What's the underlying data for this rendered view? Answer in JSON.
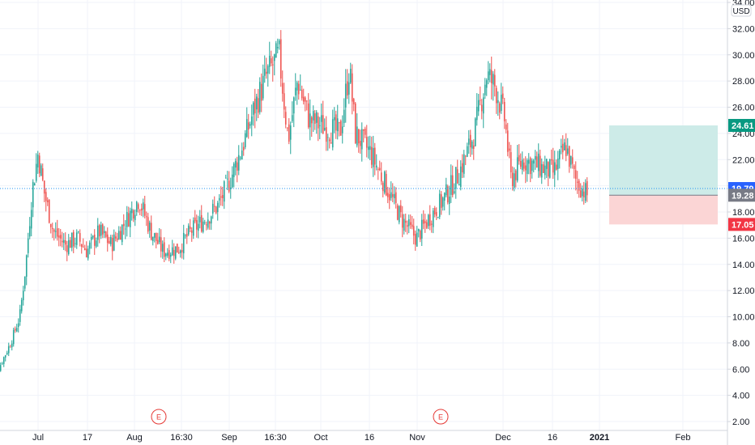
{
  "chart_data": {
    "type": "candlestick",
    "currency": "USD",
    "y_range": [
      1.5,
      34.5
    ],
    "y_ticks": [
      "2.00",
      "4.00",
      "6.00",
      "8.00",
      "10.00",
      "12.00",
      "14.00",
      "16.00",
      "18.00",
      "20.00",
      "22.00",
      "24.00",
      "26.00",
      "28.00",
      "30.00",
      "32.00",
      "34.00"
    ],
    "x_ticks": [
      "Jul",
      "17",
      "Aug",
      "16:30",
      "Sep",
      "16:30",
      "Oct",
      "16",
      "Nov",
      "Dec",
      "16",
      "2021",
      "Feb"
    ],
    "grid": true,
    "colors": {
      "up": "#26a69a",
      "down": "#ef5350",
      "grid": "#f0f3fa",
      "last_price_line": "#2196f3"
    },
    "series_close_path": [
      {
        "x": "Jun 15",
        "y": 4.5
      },
      {
        "x": "Jun 18",
        "y": 6.0
      },
      {
        "x": "Jun 22",
        "y": 8.0
      },
      {
        "x": "Jun 25",
        "y": 10.0
      },
      {
        "x": "Jun 27",
        "y": 14.0
      },
      {
        "x": "Jun 29",
        "y": 19.5
      },
      {
        "x": "Jul 1",
        "y": 22.5
      },
      {
        "x": "Jul 3",
        "y": 19.5
      },
      {
        "x": "Jul 6",
        "y": 16.5
      },
      {
        "x": "Jul 10",
        "y": 15.5
      },
      {
        "x": "Jul 14",
        "y": 16.0
      },
      {
        "x": "Jul 17",
        "y": 15.0
      },
      {
        "x": "Jul 21",
        "y": 16.5
      },
      {
        "x": "Jul 25",
        "y": 15.5
      },
      {
        "x": "Jul 29",
        "y": 17.0
      },
      {
        "x": "Aug 3",
        "y": 19.0
      },
      {
        "x": "Aug 7",
        "y": 16.5
      },
      {
        "x": "Aug 11",
        "y": 15.0
      },
      {
        "x": "Aug 16",
        "y": 15.2
      },
      {
        "x": "Aug 20",
        "y": 16.5
      },
      {
        "x": "Aug 25",
        "y": 17.5
      },
      {
        "x": "Aug 29",
        "y": 18.5
      },
      {
        "x": "Sep 2",
        "y": 20.5
      },
      {
        "x": "Sep 6",
        "y": 23.0
      },
      {
        "x": "Sep 10",
        "y": 26.0
      },
      {
        "x": "Sep 14",
        "y": 28.5
      },
      {
        "x": "Sep 18",
        "y": 30.0
      },
      {
        "x": "Sep 21",
        "y": 23.5
      },
      {
        "x": "Sep 24",
        "y": 28.0
      },
      {
        "x": "Sep 28",
        "y": 25.0
      },
      {
        "x": "Oct 3",
        "y": 24.5
      },
      {
        "x": "Oct 8",
        "y": 24.0
      },
      {
        "x": "Oct 11",
        "y": 29.0
      },
      {
        "x": "Oct 13",
        "y": 24.0
      },
      {
        "x": "Oct 18",
        "y": 22.5
      },
      {
        "x": "Oct 23",
        "y": 20.0
      },
      {
        "x": "Oct 28",
        "y": 17.5
      },
      {
        "x": "Nov 2",
        "y": 16.0
      },
      {
        "x": "Nov 6",
        "y": 17.5
      },
      {
        "x": "Nov 11",
        "y": 19.0
      },
      {
        "x": "Nov 16",
        "y": 21.0
      },
      {
        "x": "Nov 21",
        "y": 24.0
      },
      {
        "x": "Nov 25",
        "y": 28.5
      },
      {
        "x": "Nov 28",
        "y": 27.5
      },
      {
        "x": "Dec 1",
        "y": 25.0
      },
      {
        "x": "Dec 3",
        "y": 20.5
      },
      {
        "x": "Dec 7",
        "y": 22.0
      },
      {
        "x": "Dec 12",
        "y": 21.5
      },
      {
        "x": "Dec 17",
        "y": 21.0
      },
      {
        "x": "Dec 21",
        "y": 23.0
      },
      {
        "x": "Dec 24",
        "y": 20.5
      },
      {
        "x": "Dec 28",
        "y": 19.3
      }
    ],
    "earnings_markers": [
      "E",
      "E"
    ],
    "price_tags": {
      "target": "24.61",
      "last": "19.79",
      "entry": "19.28",
      "stop": "17.05"
    },
    "position": {
      "entry": 19.28,
      "target": 24.61,
      "stop": 17.05,
      "profit_color": "#cdebe8",
      "loss_color": "#fbd5d5"
    }
  }
}
